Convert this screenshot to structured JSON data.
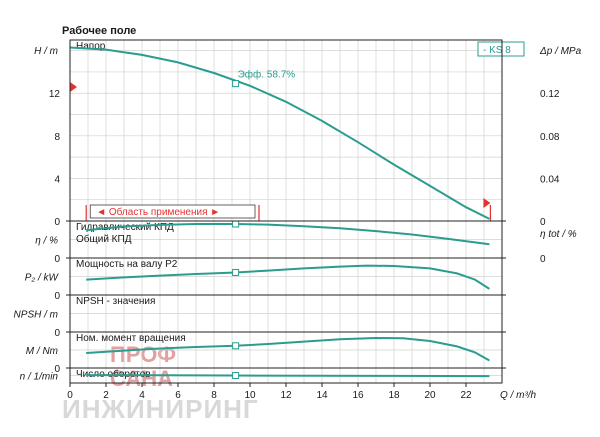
{
  "header": {
    "title": "Рабочее поле"
  },
  "watermark": {
    "line1": "ПРОФ",
    "line2": "САНА",
    "line3": "ИНЖИНИРИНГ"
  },
  "chart_data": {
    "type": "line",
    "x": {
      "label": "Q / m³/h",
      "ticks": [
        0,
        2,
        4,
        6,
        8,
        10,
        12,
        14,
        16,
        18,
        20,
        22
      ],
      "range": [
        0,
        24
      ]
    },
    "legend_box": "- KS 8",
    "panels": [
      {
        "id": "head",
        "name": "Напор",
        "y_label_left": "H / m",
        "y_label_right": "Δp / MPa",
        "y_ticks_left": [
          0,
          4,
          8,
          12
        ],
        "y_range_left": [
          0,
          17
        ],
        "y_ticks_right": [
          "0",
          "0.04",
          "0.08",
          "0.12"
        ],
        "series": [
          {
            "x": [
              0,
              2,
              4,
              6,
              8,
              10,
              12,
              14,
              16,
              18,
              20,
              22,
              23.3
            ],
            "y": [
              16.3,
              16.1,
              15.6,
              14.9,
              13.9,
              12.7,
              11.2,
              9.4,
              7.4,
              5.3,
              3.3,
              1.3,
              0.2
            ]
          }
        ],
        "efficiency_marker": {
          "x": 9.2,
          "y": 12.9,
          "label": "Эфф.  58.7%"
        },
        "range_label": "◄ Область применения ►",
        "range_bracket_x": [
          0.9,
          10.5
        ]
      },
      {
        "id": "efficiency",
        "name": "Гидравлический КПД",
        "name2": "Общий КПД",
        "y_label_left": "η / %",
        "y_label_right": "η tot / %",
        "y_ticks_left": [
          0
        ],
        "y_ticks_right": [
          "0"
        ],
        "series": [
          {
            "x": [
              0.9,
              3,
              5,
              7,
              9.2,
              11,
              13,
              15,
              17,
              19,
              21,
              23.3
            ],
            "y": [
              0.8,
              0.92,
              0.97,
              1.0,
              1.0,
              0.98,
              0.93,
              0.86,
              0.77,
              0.66,
              0.52,
              0.35
            ]
          }
        ],
        "marker_x": 9.2
      },
      {
        "id": "power",
        "name": "Мощность на валу P2",
        "y_label_left": "P₂ / kW",
        "y_ticks_left": [
          0
        ],
        "series": [
          {
            "x": [
              0.9,
              3,
              5,
              7,
              9.2,
              11,
              13,
              15,
              16.5,
              18,
              20,
              21.5,
              22.5,
              23.3
            ],
            "y": [
              0.4,
              0.47,
              0.53,
              0.58,
              0.63,
              0.69,
              0.76,
              0.82,
              0.85,
              0.84,
              0.76,
              0.6,
              0.4,
              0.1
            ]
          }
        ],
        "marker_x": 9.2
      },
      {
        "id": "npsh",
        "name": "NPSH - значения",
        "y_label_left": "NPSH / m",
        "y_ticks_left": [
          0
        ],
        "series": []
      },
      {
        "id": "torque",
        "name": "Ном. момент вращения",
        "y_label_left": "M / Nm",
        "y_ticks_left": [
          0
        ],
        "series": [
          {
            "x": [
              0.9,
              3,
              5,
              7,
              9.2,
              11,
              13,
              15,
              17,
              18.5,
              20,
              21.5,
              22.5,
              23.3
            ],
            "y": [
              0.4,
              0.48,
              0.55,
              0.6,
              0.64,
              0.7,
              0.78,
              0.86,
              0.9,
              0.89,
              0.8,
              0.62,
              0.42,
              0.15
            ]
          }
        ],
        "marker_x": 9.2
      },
      {
        "id": "speed",
        "name": "Число оборотов",
        "y_label_left": "n / 1/min",
        "y_ticks_left": [],
        "series": [
          {
            "x": [
              0.9,
              5,
              9.2,
              14,
              18,
              23.3
            ],
            "y": [
              0.55,
              0.53,
              0.5,
              0.47,
              0.45,
              0.43
            ]
          }
        ],
        "marker_x": 9.2
      }
    ]
  }
}
